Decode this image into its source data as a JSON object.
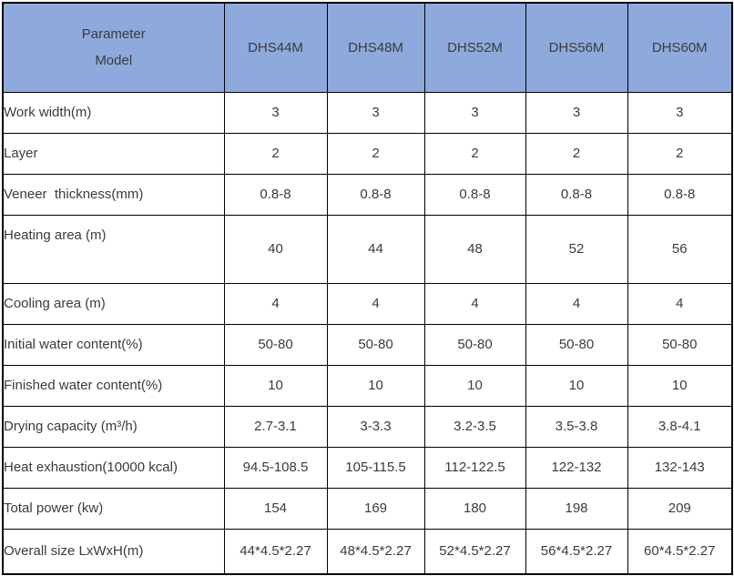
{
  "table": {
    "corner": {
      "line1": "Parameter",
      "line2": "Model"
    },
    "models": [
      "DHS44M",
      "DHS48M",
      "DHS52M",
      "DHS56M",
      "DHS60M"
    ],
    "rows": [
      {
        "label": "Work width(m)",
        "values": [
          "3",
          "3",
          "3",
          "3",
          "3"
        ]
      },
      {
        "label": "Layer",
        "values": [
          "2",
          "2",
          "2",
          "2",
          "2"
        ]
      },
      {
        "label": "Veneer  thickness(mm)",
        "values": [
          "0.8-8",
          "0.8-8",
          "0.8-8",
          "0.8-8",
          "0.8-8"
        ]
      },
      {
        "label": "Heating area (m)",
        "values": [
          "40",
          "44",
          "48",
          "52",
          "56"
        ]
      },
      {
        "label": "Cooling area (m)",
        "values": [
          "4",
          "4",
          "4",
          "4",
          "4"
        ]
      },
      {
        "label": "Initial water content(%)",
        "values": [
          "50-80",
          "50-80",
          "50-80",
          "50-80",
          "50-80"
        ]
      },
      {
        "label": "Finished water content(%)",
        "values": [
          "10",
          "10",
          "10",
          "10",
          "10"
        ]
      },
      {
        "label": "Drying capacity (m³/h)",
        "values": [
          "2.7-3.1",
          "3-3.3",
          "3.2-3.5",
          "3.5-3.8",
          "3.8-4.1"
        ]
      },
      {
        "label": "Heat exhaustion(10000 kcal)",
        "values": [
          "94.5-108.5",
          "105-115.5",
          "112-122.5",
          "122-132",
          "132-143"
        ]
      },
      {
        "label": "Total power (kw)",
        "values": [
          "154",
          "169",
          "180",
          "198",
          "209"
        ]
      },
      {
        "label": "Overall size LxWxH(m)",
        "values": [
          "44*4.5*2.27",
          "48*4.5*2.27",
          "52*4.5*2.27",
          "56*4.5*2.27",
          "60*4.5*2.27"
        ]
      }
    ],
    "colors": {
      "header_bg": "#8ea9dc",
      "border": "#000000",
      "text": "#3b3b3b"
    }
  },
  "chart_data": {
    "type": "table",
    "title": "Veneer dryer model specifications",
    "columns": [
      "Parameter \\ Model",
      "DHS44M",
      "DHS48M",
      "DHS52M",
      "DHS56M",
      "DHS60M"
    ],
    "rows": [
      [
        "Work width(m)",
        "3",
        "3",
        "3",
        "3",
        "3"
      ],
      [
        "Layer",
        "2",
        "2",
        "2",
        "2",
        "2"
      ],
      [
        "Veneer  thickness(mm)",
        "0.8-8",
        "0.8-8",
        "0.8-8",
        "0.8-8",
        "0.8-8"
      ],
      [
        "Heating area (m)",
        "40",
        "44",
        "48",
        "52",
        "56"
      ],
      [
        "Cooling area (m)",
        "4",
        "4",
        "4",
        "4",
        "4"
      ],
      [
        "Initial water content(%)",
        "50-80",
        "50-80",
        "50-80",
        "50-80",
        "50-80"
      ],
      [
        "Finished water content(%)",
        "10",
        "10",
        "10",
        "10",
        "10"
      ],
      [
        "Drying capacity (m³/h)",
        "2.7-3.1",
        "3-3.3",
        "3.2-3.5",
        "3.5-3.8",
        "3.8-4.1"
      ],
      [
        "Heat exhaustion(10000 kcal)",
        "94.5-108.5",
        "105-115.5",
        "112-122.5",
        "122-132",
        "132-143"
      ],
      [
        "Total power (kw)",
        "154",
        "169",
        "180",
        "198",
        "209"
      ],
      [
        "Overall size LxWxH(m)",
        "44*4.5*2.27",
        "48*4.5*2.27",
        "52*4.5*2.27",
        "56*4.5*2.27",
        "60*4.5*2.27"
      ]
    ]
  }
}
